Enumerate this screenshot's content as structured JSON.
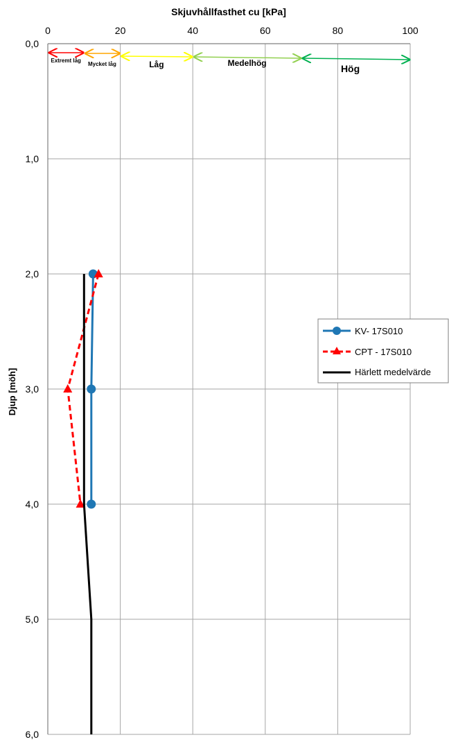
{
  "chart_data": {
    "type": "line",
    "title": "",
    "xlabel": "Skjuvhållfasthet cu [kPa]",
    "ylabel": "Djup [möh]",
    "xlim": [
      0,
      100
    ],
    "ylim": [
      0,
      6
    ],
    "y_inverted": true,
    "x_axis_position": "top",
    "x_ticks": [
      0,
      20,
      40,
      60,
      80,
      100
    ],
    "y_ticks": [
      0,
      1,
      2,
      3,
      4,
      5,
      6
    ],
    "x_tick_labels": [
      "0",
      "20",
      "40",
      "60",
      "80",
      "100"
    ],
    "y_tick_labels": [
      "0,0",
      "1,0",
      "2,0",
      "3,0",
      "4,0",
      "5,0",
      "6,0"
    ],
    "grid": true,
    "legend_position": "right",
    "zones": [
      {
        "label": "Extremt låg",
        "from": 0,
        "to": 10,
        "color": "#ff0000",
        "size": "small"
      },
      {
        "label": "Mycket låg",
        "from": 10,
        "to": 20,
        "color": "#ffa500",
        "size": "small"
      },
      {
        "label": "Låg",
        "from": 20,
        "to": 40,
        "color": "#ffff00",
        "size": "medium"
      },
      {
        "label": "Medelhög",
        "from": 40,
        "to": 70,
        "color": "#92d050",
        "size": "medium"
      },
      {
        "label": "Hög",
        "from": 70,
        "to": 100,
        "color": "#00b050",
        "size": "large"
      }
    ],
    "series": [
      {
        "name": "KV- 17S010",
        "color": "#1f77b4",
        "style": "solid",
        "marker": "circle",
        "x": [
          12.5,
          12,
          12
        ],
        "y": [
          2.0,
          3.0,
          4.0
        ]
      },
      {
        "name": "CPT - 17S010",
        "color": "#ff0000",
        "style": "dashed",
        "marker": "triangle",
        "x": [
          14,
          5.5,
          9
        ],
        "y": [
          2.0,
          3.0,
          4.0
        ]
      },
      {
        "name": "Härlett medelvärde",
        "color": "#000000",
        "style": "solid",
        "marker": "none",
        "x": [
          10,
          10,
          12,
          12
        ],
        "y": [
          2.0,
          4.0,
          5.0,
          6.0
        ]
      }
    ]
  }
}
